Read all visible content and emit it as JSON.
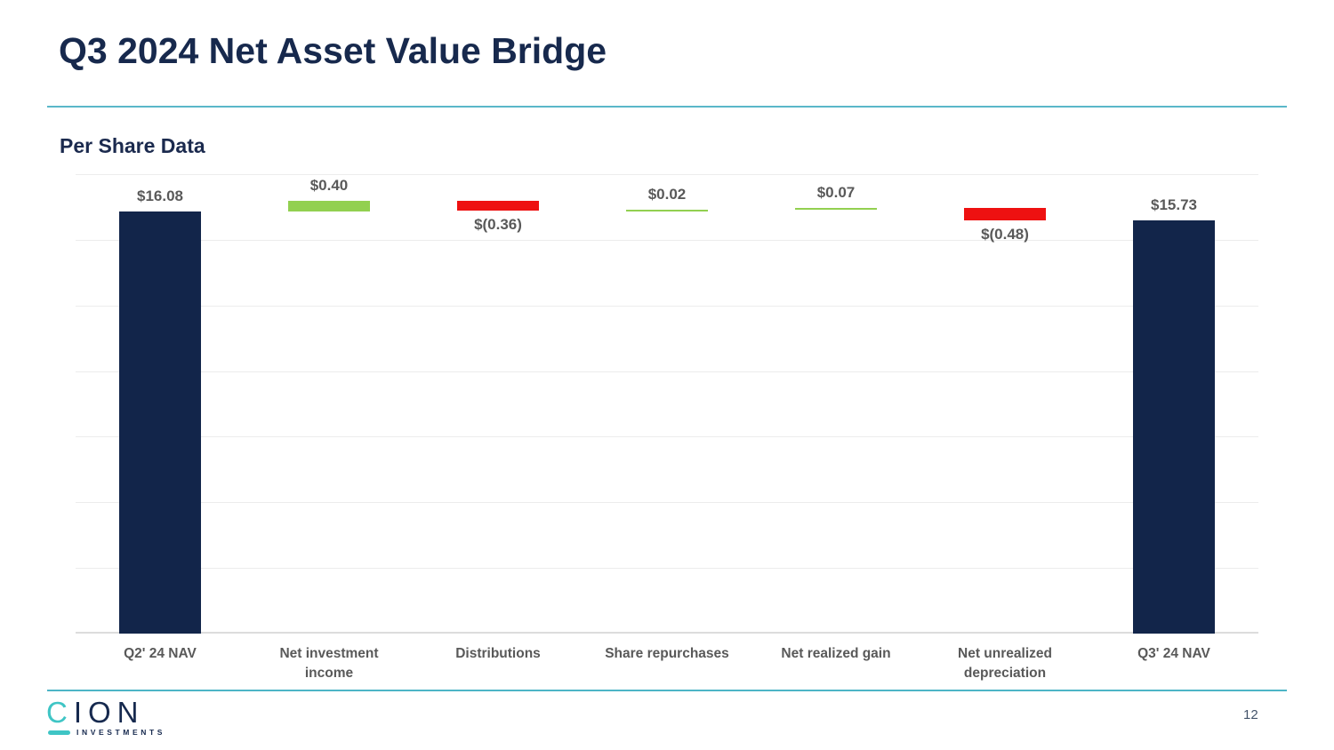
{
  "header": {
    "title": "Q3 2024 Net Asset Value Bridge"
  },
  "chart_data": {
    "type": "bar",
    "subtype": "waterfall",
    "title": "Q3 2024 Net Asset Value Bridge",
    "subtitle": "Per Share Data",
    "unit": "$ per share",
    "y_axis": {
      "min": 0,
      "max": 17.5,
      "grid_step": 2.5,
      "tick_labels_visible": false,
      "grid_visible": true
    },
    "categories": [
      "Q2' 24 NAV",
      "Net investment\nincome",
      "Distributions",
      "Share repurchases",
      "Net realized gain",
      "Net unrealized\ndepreciation",
      "Q3' 24 NAV"
    ],
    "steps": [
      {
        "category": "Q2' 24 NAV",
        "kind": "total",
        "value": 16.08,
        "label": "$16.08",
        "label_position": "above"
      },
      {
        "category": "Net investment\nincome",
        "kind": "delta",
        "value": 0.4,
        "label": "$0.40",
        "label_position": "above"
      },
      {
        "category": "Distributions",
        "kind": "delta",
        "value": -0.36,
        "label": "$(0.36)",
        "label_position": "below"
      },
      {
        "category": "Share repurchases",
        "kind": "delta",
        "value": 0.02,
        "label": "$0.02",
        "label_position": "above"
      },
      {
        "category": "Net realized gain",
        "kind": "delta",
        "value": 0.07,
        "label": "$0.07",
        "label_position": "above"
      },
      {
        "category": "Net unrealized\ndepreciation",
        "kind": "delta",
        "value": -0.48,
        "label": "$(0.48)",
        "label_position": "below"
      },
      {
        "category": "Q3' 24 NAV",
        "kind": "total",
        "value": 15.73,
        "label": "$15.73",
        "label_position": "above"
      }
    ],
    "colors": {
      "total": "#12254a",
      "increase": "#92d050",
      "decrease": "#ee1111",
      "value_label": "#595959",
      "category_label": "#595959",
      "gridline": "#ececec",
      "axis_line": "#dcdcdc"
    }
  },
  "theme": {
    "title_navy": "#17294d",
    "rule_teal": "#4db5c6",
    "logo_teal": "#3fc5c5",
    "logo_navy": "#16294e"
  },
  "footer": {
    "page_number": "12",
    "logo": {
      "c": "C",
      "ion": "ION",
      "sub": "INVESTMENTS"
    }
  }
}
